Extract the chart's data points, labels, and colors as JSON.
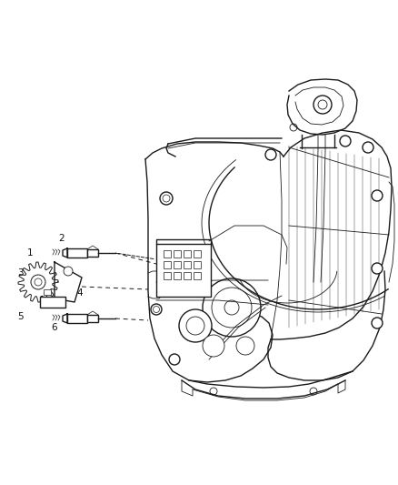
{
  "background_color": "#ffffff",
  "fig_width": 4.38,
  "fig_height": 5.33,
  "dpi": 100,
  "line_color": "#1a1a1a",
  "lw_main": 1.0,
  "lw_thin": 0.6,
  "lw_thick": 1.3
}
